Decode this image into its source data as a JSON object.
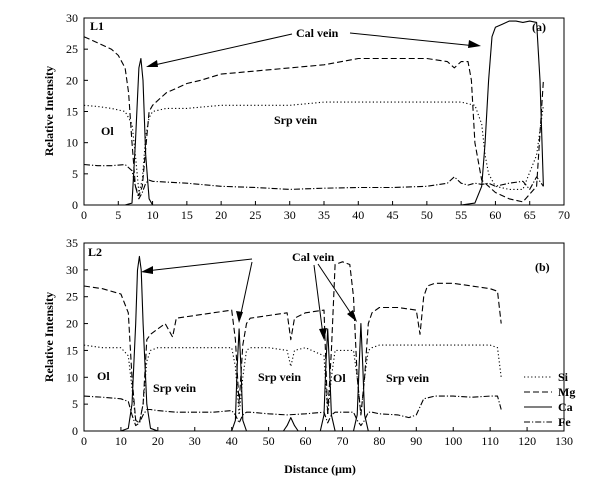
{
  "chart_data": [
    {
      "type": "line",
      "panel_label": "L1",
      "panel_tag": "(a)",
      "xlabel": "",
      "ylabel": "Relative Intensity",
      "xlim": [
        0,
        70
      ],
      "ylim": [
        0,
        30
      ],
      "xticks": [
        0,
        5,
        10,
        15,
        20,
        25,
        30,
        35,
        40,
        45,
        50,
        55,
        60,
        65,
        70
      ],
      "yticks": [
        0,
        5,
        10,
        15,
        20,
        25,
        30
      ],
      "grid": false,
      "annotations": [
        "Cal vein",
        "Ol",
        "Srp vein"
      ],
      "series": [
        {
          "name": "Si",
          "style": "dotted",
          "x": [
            0,
            2,
            4,
            6,
            7,
            7.5,
            8,
            8.5,
            9,
            9.5,
            10,
            12,
            15,
            20,
            25,
            30,
            35,
            40,
            45,
            50,
            55,
            57,
            58,
            58.5,
            59,
            60,
            62,
            64,
            66,
            67
          ],
          "y": [
            16,
            15.8,
            15.5,
            15,
            13,
            8,
            2,
            4,
            11,
            14,
            15,
            15.5,
            15.5,
            16,
            16,
            16,
            16.5,
            16.5,
            16.5,
            16.5,
            16.5,
            16,
            13,
            8,
            5,
            3,
            2.5,
            2.5,
            8,
            16
          ]
        },
        {
          "name": "Mg",
          "style": "dashed",
          "x": [
            0,
            2,
            4,
            5,
            6,
            6.5,
            7,
            7.5,
            8,
            8.5,
            9,
            9.5,
            10,
            11,
            12,
            15,
            17,
            20,
            25,
            30,
            35,
            40,
            45,
            50,
            53,
            54,
            55,
            56,
            56.5,
            57,
            58,
            59,
            60,
            62,
            64,
            66,
            67
          ],
          "y": [
            27,
            26,
            25,
            24,
            22,
            18,
            10,
            3,
            1.5,
            3,
            9,
            15,
            16,
            17,
            18,
            19.5,
            20,
            21,
            21.5,
            22,
            22.5,
            23.5,
            23.5,
            23.5,
            23,
            22,
            23,
            23,
            20,
            10,
            4,
            3,
            2,
            1,
            0.5,
            3,
            20
          ]
        },
        {
          "name": "Ca",
          "style": "solid",
          "x": [
            0,
            6,
            7,
            7.5,
            8,
            8.3,
            8.6,
            9,
            9.5,
            10,
            15,
            30,
            55,
            57,
            58,
            58.5,
            59,
            59.5,
            60,
            61,
            62,
            63,
            64,
            65,
            66,
            66.5,
            67
          ],
          "y": [
            0,
            0,
            0.3,
            10,
            22,
            23.5,
            20,
            8,
            1,
            0,
            0,
            0,
            0,
            0.3,
            3,
            10,
            20,
            27,
            28.5,
            29,
            29.5,
            29.5,
            29.3,
            29.5,
            29.3,
            20,
            3
          ]
        },
        {
          "name": "Fe",
          "style": "dashdot",
          "x": [
            0,
            2,
            4,
            6,
            7,
            7.5,
            8,
            8.5,
            9,
            9.5,
            10,
            15,
            20,
            25,
            30,
            35,
            40,
            45,
            50,
            53,
            54,
            55,
            56,
            57,
            58,
            59,
            60,
            62,
            64,
            65,
            66,
            67
          ],
          "y": [
            6.5,
            6.3,
            6.3,
            6.5,
            5.5,
            3,
            1,
            2,
            3.5,
            4,
            3.8,
            3.5,
            3,
            2.8,
            2.5,
            2.7,
            2.8,
            2.8,
            3,
            3.5,
            4.5,
            3.5,
            3.2,
            3.5,
            3.3,
            3.5,
            3,
            3.5,
            3.8,
            2.5,
            4.5,
            3
          ]
        }
      ]
    },
    {
      "type": "line",
      "panel_label": "L2",
      "panel_tag": "(b)",
      "xlabel": "Distance (μm)",
      "ylabel": "Relative Intensity",
      "xlim": [
        0,
        130
      ],
      "ylim": [
        0,
        35
      ],
      "xticks": [
        0,
        10,
        20,
        30,
        40,
        50,
        60,
        70,
        80,
        90,
        100,
        110,
        120,
        130
      ],
      "yticks": [
        0,
        5,
        10,
        15,
        20,
        25,
        30,
        35
      ],
      "grid": false,
      "annotations": [
        "Cal vein",
        "Ol",
        "Srp vein",
        "Ol",
        "Srp vein",
        "Ol",
        "Srp vein"
      ],
      "legend_position": "bottom-right",
      "series": [
        {
          "name": "Si",
          "style": "dotted",
          "x": [
            0,
            5,
            10,
            12,
            13,
            14,
            15,
            16,
            17,
            18,
            20,
            30,
            40,
            41,
            42,
            43,
            44,
            45,
            50,
            55,
            56,
            57,
            60,
            65,
            66,
            67,
            68,
            70,
            73,
            74,
            75,
            76,
            77,
            78,
            80,
            90,
            100,
            110,
            112,
            113
          ],
          "y": [
            16,
            15.5,
            15.5,
            14,
            8,
            2,
            1.5,
            5,
            13,
            15,
            15.5,
            15.5,
            15.5,
            12,
            3,
            10,
            15,
            15.5,
            15.5,
            15,
            12,
            15,
            15.5,
            14,
            3,
            10,
            15,
            15,
            15,
            10,
            3,
            10,
            15,
            15.5,
            16,
            16,
            16,
            16,
            15.5,
            10
          ]
        },
        {
          "name": "Mg",
          "style": "dashed",
          "x": [
            0,
            5,
            10,
            12,
            13,
            14,
            15,
            16,
            17,
            18,
            20,
            22,
            24,
            25,
            30,
            35,
            40,
            41,
            42,
            43,
            44,
            45,
            50,
            55,
            56,
            57,
            60,
            65,
            66,
            67,
            68,
            70,
            72,
            73,
            74,
            75,
            76,
            77,
            78,
            80,
            85,
            90,
            91,
            92,
            93,
            95,
            100,
            105,
            110,
            112,
            113
          ],
          "y": [
            27,
            26.5,
            25.5,
            22,
            10,
            2,
            1.5,
            5,
            17,
            18,
            19,
            20,
            17.5,
            21,
            21.5,
            22,
            22.5,
            17,
            5,
            16,
            20,
            21,
            21.5,
            22,
            17,
            21,
            22,
            22.5,
            3,
            15,
            31,
            31.5,
            31,
            25,
            10,
            3,
            10,
            20,
            22,
            23,
            23,
            22.5,
            18,
            25,
            27,
            27.5,
            27.5,
            27,
            26.5,
            26,
            20
          ]
        },
        {
          "name": "Ca",
          "style": "solid",
          "x": [
            0,
            10,
            12,
            13,
            14,
            14.5,
            15,
            15.5,
            16,
            17,
            18,
            20,
            40,
            41,
            41.5,
            42,
            42.5,
            43,
            44,
            54,
            55,
            56,
            57,
            58,
            64,
            65,
            65.5,
            66,
            66.5,
            67,
            68,
            73,
            74,
            74.5,
            75,
            75.5,
            76,
            77,
            80,
            100,
            113
          ],
          "y": [
            0,
            0,
            0.5,
            5,
            20,
            30,
            32.5,
            30,
            20,
            5,
            0.5,
            0,
            0,
            2,
            12,
            19,
            12,
            2,
            0,
            0,
            1,
            2.5,
            1,
            0,
            0,
            3,
            12,
            19,
            12,
            3,
            0,
            0,
            3,
            12,
            20,
            12,
            3,
            0,
            0,
            0,
            0
          ]
        },
        {
          "name": "Fe",
          "style": "dashdot",
          "x": [
            0,
            5,
            10,
            12,
            13,
            14,
            15,
            16,
            17,
            18,
            20,
            25,
            30,
            35,
            40,
            41,
            42,
            43,
            44,
            45,
            50,
            55,
            60,
            65,
            66,
            67,
            68,
            70,
            73,
            74,
            75,
            76,
            77,
            78,
            80,
            85,
            88,
            90,
            92,
            95,
            100,
            105,
            110,
            112,
            113
          ],
          "y": [
            6.5,
            6.3,
            6,
            5.5,
            3,
            1,
            1.5,
            3,
            4,
            4,
            3.8,
            3.5,
            3.5,
            3.5,
            3.8,
            3,
            1.5,
            3,
            3.5,
            3.5,
            3.2,
            3,
            3.2,
            3.5,
            1.5,
            3,
            3.5,
            3.5,
            3.5,
            2,
            1,
            2,
            3.5,
            3.5,
            3.2,
            3,
            2.5,
            3,
            6,
            6.5,
            6.5,
            6.3,
            6.5,
            6.5,
            4
          ]
        }
      ]
    }
  ],
  "legend": [
    {
      "name": "Si",
      "style": "dotted"
    },
    {
      "name": "Mg",
      "style": "dashed"
    },
    {
      "name": "Ca",
      "style": "solid"
    },
    {
      "name": "Fe",
      "style": "dashdot"
    }
  ]
}
